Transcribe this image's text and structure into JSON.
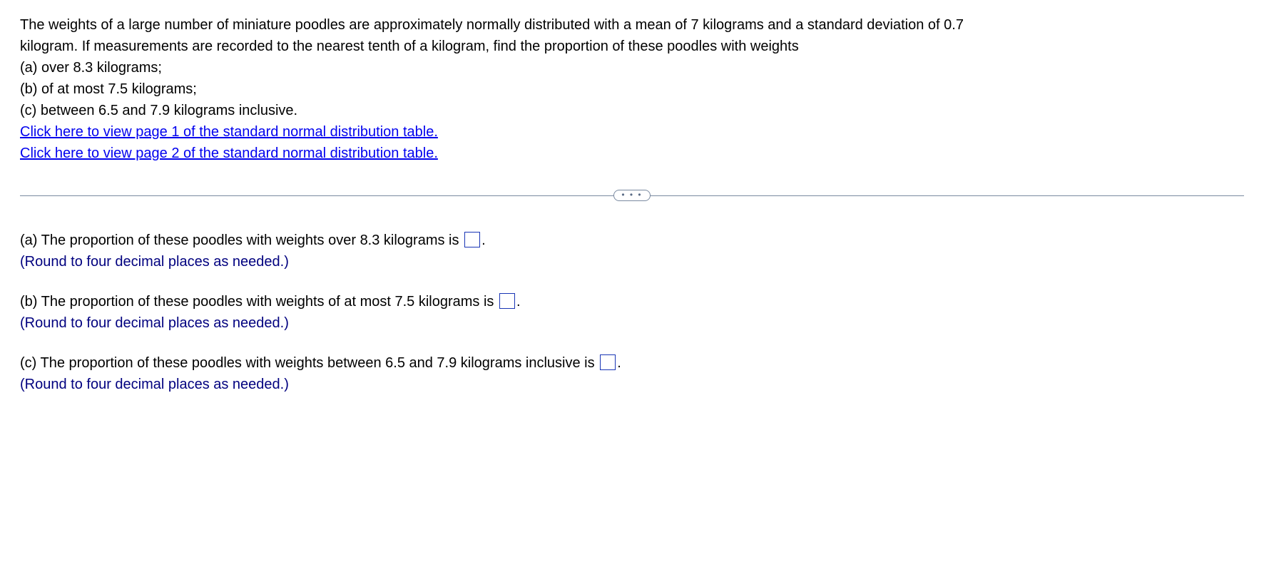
{
  "question": {
    "intro_line1": "The weights of a large number of miniature poodles are approximately normally distributed with a mean of 7 kilograms and a standard deviation of 0.7",
    "intro_line2": "kilogram. If measurements are recorded to the nearest tenth of a kilogram, find the proportion of these poodles with weights",
    "part_a": "(a) over 8.3 kilograms;",
    "part_b": "(b) of at most 7.5 kilograms;",
    "part_c": "(c) between 6.5 and 7.9 kilograms inclusive.",
    "link1": "Click here to view page 1 of the standard normal distribution table.",
    "link2": "Click here to view page 2 of the standard normal distribution table."
  },
  "divider": {
    "dots": "• • •"
  },
  "answers": {
    "a": {
      "prompt_before": "(a) The proportion of these poodles with weights over 8.3 kilograms is ",
      "prompt_after": ".",
      "hint": "(Round to four decimal places as needed.)",
      "value": ""
    },
    "b": {
      "prompt_before": "(b) The proportion of these poodles with weights of at most 7.5 kilograms is ",
      "prompt_after": ".",
      "hint": "(Round to four decimal places as needed.)",
      "value": ""
    },
    "c": {
      "prompt_before": "(c) The proportion of these poodles with weights between 6.5 and 7.9 kilograms inclusive is ",
      "prompt_after": ".",
      "hint": "(Round to four decimal places as needed.)",
      "value": ""
    }
  },
  "colors": {
    "text": "#000000",
    "link": "#0000ee",
    "hint": "#00007f",
    "input_border": "#1935b5",
    "divider": "#7a8aa0",
    "background": "#ffffff"
  }
}
